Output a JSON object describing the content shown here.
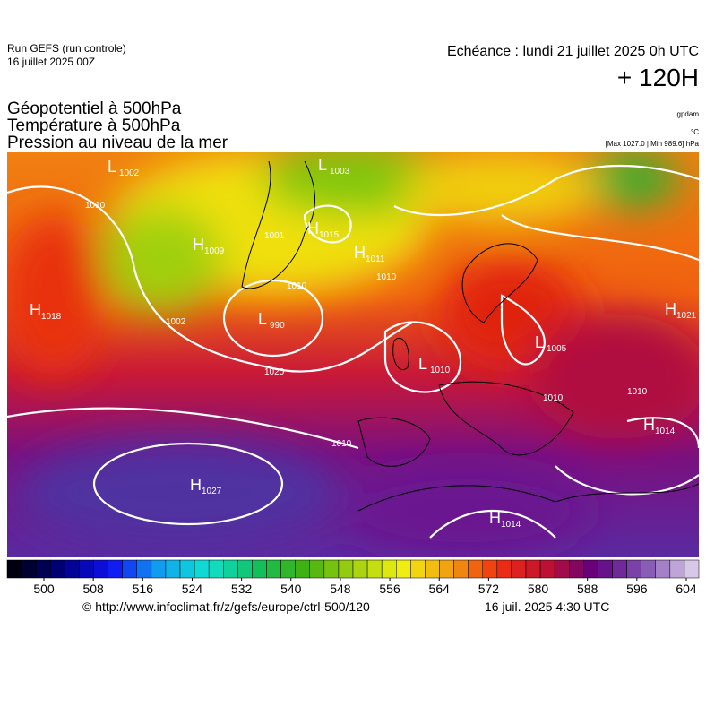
{
  "header": {
    "run": "Run GEFS (run controle)",
    "date": "16 juillet 2025 00Z",
    "echeance": "Echéance : lundi 21 juillet 2025 0h UTC",
    "lead": "+ 120H"
  },
  "titles": [
    "Géopotentiel à 500hPa",
    "Température à 500hPa",
    "Pression au niveau de la mer"
  ],
  "units": {
    "geopotential": "gpdam",
    "temperature": "°C",
    "pressure": "[Max 1027.0 | Min 989.6] hPa"
  },
  "centers": [
    {
      "letter": "L",
      "value": "1002"
    },
    {
      "letter": "L",
      "value": "1003"
    },
    {
      "letter": "H",
      "value": "1009"
    },
    {
      "letter": "H",
      "value": "1015"
    },
    {
      "letter": "H",
      "value": "1011"
    },
    {
      "letter": "H",
      "value": "1018"
    },
    {
      "letter": "L",
      "value": "990"
    },
    {
      "letter": "L",
      "value": "1005"
    },
    {
      "letter": "L",
      "value": "1010"
    },
    {
      "letter": "H",
      "value": "1014"
    },
    {
      "letter": "H",
      "value": "1027"
    },
    {
      "letter": "H",
      "value": "1014"
    },
    {
      "letter": "H",
      "value": "1021"
    }
  ],
  "contour_labels": [
    "1002",
    "1001",
    "1010",
    "1010",
    "1020",
    "1010",
    "1010",
    "1010",
    "1010"
  ],
  "colorbar": {
    "ticks": [
      500,
      508,
      516,
      524,
      532,
      540,
      548,
      556,
      564,
      572,
      580,
      588,
      596,
      604
    ],
    "colors": [
      "#000010",
      "#000080",
      "#1010f0",
      "#10a0f0",
      "#10e0d0",
      "#10c060",
      "#40b010",
      "#a0d010",
      "#f0f010",
      "#f0a010",
      "#f03010",
      "#c01030",
      "#600080",
      "#8050b0",
      "#d8c8e8"
    ]
  },
  "footer": {
    "source": "© http://www.infoclimat.fr/z/gefs/europe/ctrl-500/120",
    "issued": "16 juil. 2025  4:30 UTC"
  }
}
